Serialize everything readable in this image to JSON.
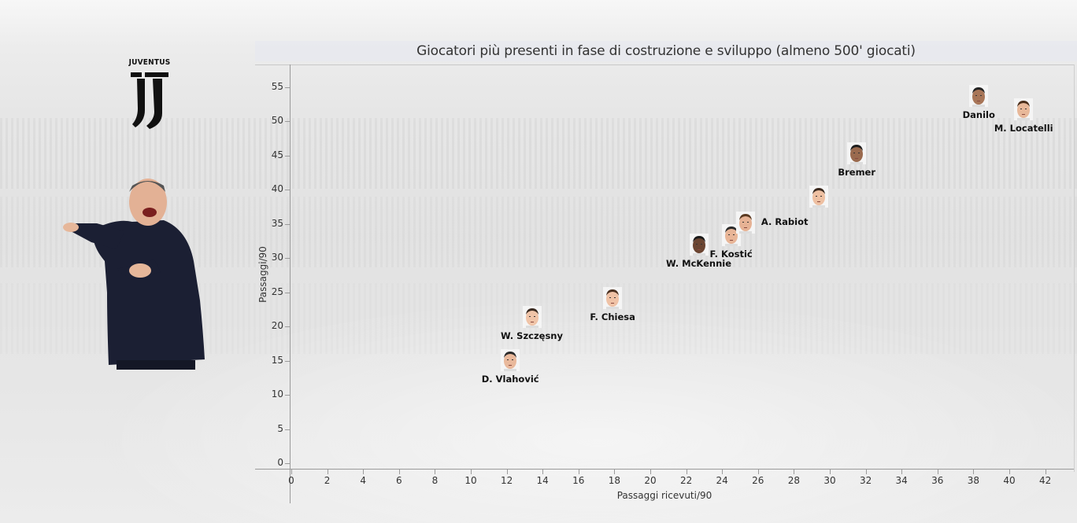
{
  "branding": {
    "club_name": "JUVENTUS",
    "logo_icon": "juventus-j-logo-icon",
    "coach_image": "coach-photo"
  },
  "colors": {
    "text": "#333333",
    "label_text": "#111111",
    "axis": "#9a9a9a",
    "title_bar": "#e8e9ee",
    "coat": "#1b1f33"
  },
  "chart_data": {
    "type": "scatter",
    "title": "Giocatori più presenti in fase di costruzione e sviluppo (almeno 500' giocati)",
    "xlabel": "Passaggi ricevuti/90",
    "ylabel": "Passaggi/90",
    "xlim": [
      0,
      43.5
    ],
    "ylim": [
      -0.8,
      58
    ],
    "x_ticks": [
      0,
      2,
      4,
      6,
      8,
      10,
      12,
      14,
      16,
      18,
      20,
      22,
      24,
      26,
      28,
      30,
      32,
      34,
      36,
      38,
      40,
      42
    ],
    "y_ticks": [
      0,
      5,
      10,
      15,
      20,
      25,
      30,
      35,
      40,
      45,
      50,
      55
    ],
    "grid": false,
    "legend": "none",
    "marker": "player-face-image",
    "points": [
      {
        "label": "D. Vlahović",
        "x": 12.2,
        "y": 15.1,
        "label_pos": "below"
      },
      {
        "label": "W. Szczęsny",
        "x": 13.4,
        "y": 21.4,
        "label_pos": "below"
      },
      {
        "label": "F. Chiesa",
        "x": 17.9,
        "y": 24.1,
        "label_pos": "below"
      },
      {
        "label": "W. McKennie",
        "x": 22.7,
        "y": 32.0,
        "label_pos": "below"
      },
      {
        "label": "F. Kostić",
        "x": 24.5,
        "y": 33.3,
        "label_pos": "below"
      },
      {
        "label": "A. Rabiot",
        "x": 25.3,
        "y": 35.2,
        "label_pos": "right"
      },
      {
        "label": "",
        "x": 29.4,
        "y": 39.0,
        "label_pos": "none"
      },
      {
        "label": "Bremer",
        "x": 31.5,
        "y": 45.3,
        "label_pos": "below"
      },
      {
        "label": "Danilo",
        "x": 38.3,
        "y": 53.7,
        "label_pos": "below"
      },
      {
        "label": "M. Locatelli",
        "x": 40.8,
        "y": 51.7,
        "label_pos": "below"
      }
    ]
  }
}
